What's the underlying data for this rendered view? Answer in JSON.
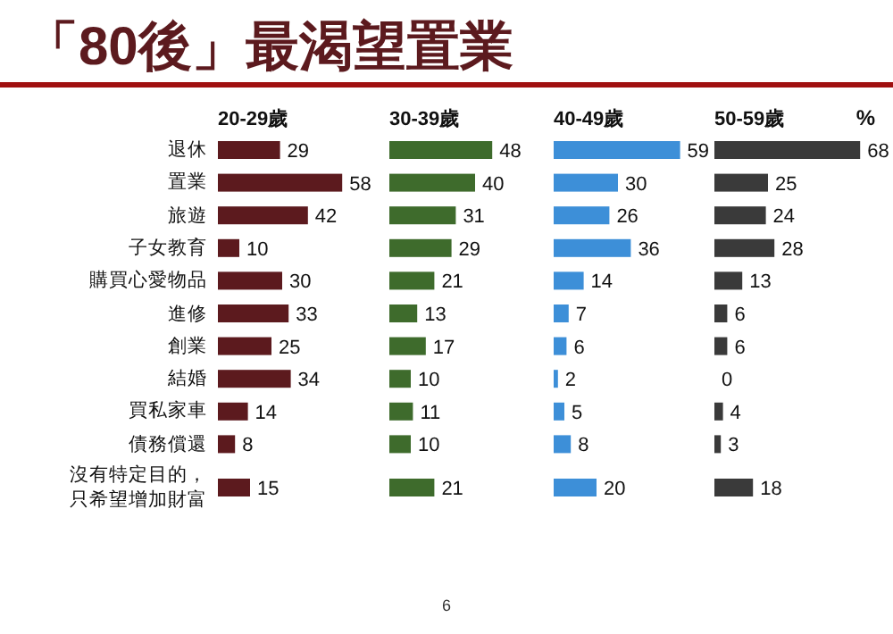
{
  "chart_data": [
    {
      "type": "bar",
      "orientation": "horizontal",
      "title": "「80後」最渴望置業",
      "subtitle": "20-29歲",
      "categories": [
        "退休",
        "置業",
        "旅遊",
        "子女教育",
        "購買心愛物品",
        "進修",
        "創業",
        "結婚",
        "買私家車",
        "債務償還",
        "沒有特定目的，只希望增加財富"
      ],
      "series": [
        {
          "color": "#5c1a1e",
          "values": [
            29,
            58,
            42,
            10,
            30,
            33,
            25,
            34,
            14,
            8,
            15
          ]
        }
      ],
      "data_labels": true,
      "tick_labels": "y",
      "annotations": [
        "6"
      ]
    },
    {
      "type": "bar",
      "orientation": "horizontal",
      "subtitle": "30-39歲",
      "categories": [
        null,
        null,
        null,
        null,
        null,
        null,
        null,
        null,
        null,
        null,
        null
      ],
      "series": [
        {
          "color": "#3e6b2c",
          "values": [
            48,
            40,
            31,
            29,
            21,
            13,
            17,
            10,
            11,
            10,
            21
          ]
        }
      ],
      "data_labels": true,
      "tick_labels": false
    },
    {
      "type": "bar",
      "orientation": "horizontal",
      "subtitle": "40-49歲",
      "categories": [
        null,
        null,
        null,
        null,
        null,
        null,
        null,
        null,
        null,
        null,
        null
      ],
      "series": [
        {
          "color": "#3d8fd8",
          "values": [
            59,
            30,
            26,
            36,
            14,
            7,
            6,
            2,
            5,
            8,
            20
          ]
        }
      ],
      "data_labels": true,
      "tick_labels": false
    },
    {
      "type": "bar",
      "orientation": "horizontal",
      "subtitle": "50-59歲",
      "categories": [
        null,
        null,
        null,
        null,
        null,
        null,
        null,
        null,
        null,
        null,
        null
      ],
      "series": [
        {
          "color": "#3a3a3a",
          "values": [
            68,
            25,
            24,
            28,
            13,
            6,
            6,
            0,
            4,
            3,
            18
          ]
        }
      ],
      "data_labels": true,
      "tick_labels": false,
      "annotations": [
        "%"
      ]
    }
  ]
}
